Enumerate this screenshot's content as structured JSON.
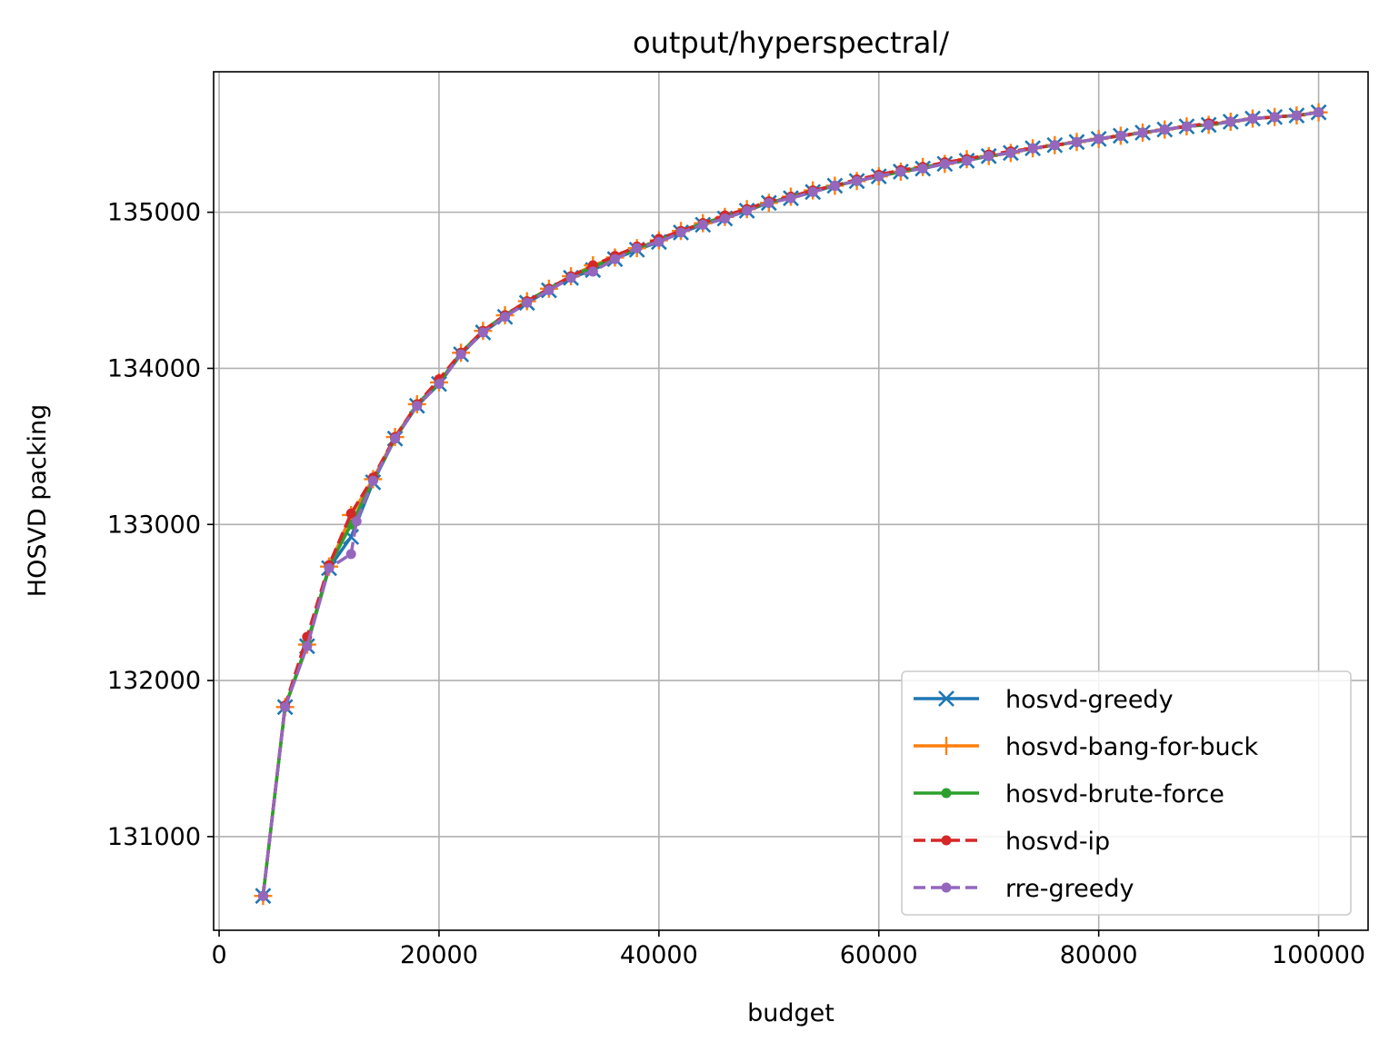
{
  "chart_data": {
    "type": "line",
    "title": "output/hyperspectral/",
    "xlabel": "budget",
    "ylabel": "HOSVD packing",
    "xlim": [
      -500,
      104500
    ],
    "ylim": [
      130400,
      135900
    ],
    "xticks": [
      0,
      20000,
      40000,
      60000,
      80000,
      100000
    ],
    "yticks": [
      131000,
      132000,
      133000,
      134000,
      135000
    ],
    "grid": true,
    "legend_position": "lower-right",
    "series": [
      {
        "name": "hosvd-greedy",
        "color": "#1f77b4",
        "linestyle": "solid",
        "marker": "x",
        "x": [
          4000,
          6000,
          8000,
          10000,
          12000,
          14000,
          16000,
          18000,
          20000,
          22000,
          24000,
          26000,
          28000,
          30000,
          32000,
          34000,
          36000,
          38000,
          40000,
          42000,
          44000,
          46000,
          48000,
          50000,
          52000,
          54000,
          56000,
          58000,
          60000,
          62000,
          64000,
          66000,
          68000,
          70000,
          72000,
          74000,
          76000,
          78000,
          80000,
          82000,
          84000,
          86000,
          88000,
          90000,
          92000,
          94000,
          96000,
          98000,
          100000
        ],
        "y": [
          130620,
          131830,
          132220,
          132720,
          132920,
          133270,
          133550,
          133760,
          133900,
          134090,
          134230,
          134330,
          134420,
          134500,
          134580,
          134630,
          134700,
          134760,
          134810,
          134870,
          134920,
          134960,
          135010,
          135060,
          135090,
          135130,
          135170,
          135200,
          135230,
          135260,
          135280,
          135310,
          135330,
          135360,
          135380,
          135410,
          135430,
          135450,
          135470,
          135490,
          135510,
          135530,
          135550,
          135560,
          135580,
          135600,
          135610,
          135620,
          135640
        ]
      },
      {
        "name": "hosvd-bang-for-buck",
        "color": "#ff7f0e",
        "linestyle": "solid",
        "marker": "+",
        "x": [
          4000,
          6000,
          8000,
          10000,
          12000,
          14000,
          16000,
          18000,
          20000,
          22000,
          24000,
          26000,
          28000,
          30000,
          32000,
          34000,
          36000,
          38000,
          40000,
          42000,
          44000,
          46000,
          48000,
          50000,
          52000,
          54000,
          56000,
          58000,
          60000,
          62000,
          64000,
          66000,
          68000,
          70000,
          72000,
          74000,
          76000,
          78000,
          80000,
          82000,
          84000,
          86000,
          88000,
          90000,
          92000,
          94000,
          96000,
          98000,
          100000
        ],
        "y": [
          130620,
          131830,
          132230,
          132730,
          133060,
          133290,
          133560,
          133770,
          133910,
          134100,
          134240,
          134340,
          134430,
          134510,
          134590,
          134660,
          134710,
          134770,
          134820,
          134880,
          134930,
          134970,
          135020,
          135060,
          135100,
          135140,
          135170,
          135200,
          135230,
          135260,
          135290,
          135310,
          135340,
          135360,
          135380,
          135410,
          135430,
          135450,
          135470,
          135490,
          135510,
          135530,
          135550,
          135560,
          135580,
          135600,
          135610,
          135620,
          135640
        ]
      },
      {
        "name": "hosvd-brute-force",
        "color": "#2ca02c",
        "linestyle": "solid",
        "marker": ".",
        "x": [
          4000,
          6000,
          8000,
          10000,
          12000,
          14000,
          16000,
          18000,
          20000,
          22000,
          24000,
          26000,
          28000,
          30000,
          32000,
          34000,
          36000,
          38000,
          40000,
          42000,
          44000,
          46000,
          48000,
          50000,
          52000,
          54000,
          56000,
          58000,
          60000,
          62000,
          64000,
          66000,
          68000,
          70000,
          72000,
          74000,
          76000,
          78000,
          80000,
          82000,
          84000,
          86000,
          88000,
          90000,
          92000,
          94000,
          96000,
          98000,
          100000
        ],
        "y": [
          130620,
          131830,
          132240,
          132730,
          133000,
          133280,
          133550,
          133770,
          133910,
          134100,
          134240,
          134340,
          134430,
          134510,
          134590,
          134650,
          134710,
          134770,
          134820,
          134880,
          134930,
          134970,
          135020,
          135060,
          135100,
          135140,
          135170,
          135200,
          135230,
          135260,
          135290,
          135310,
          135340,
          135360,
          135380,
          135410,
          135430,
          135450,
          135470,
          135490,
          135510,
          135530,
          135550,
          135560,
          135580,
          135600,
          135610,
          135620,
          135640
        ]
      },
      {
        "name": "hosvd-ip",
        "color": "#d62728",
        "linestyle": "dashed",
        "marker": ".",
        "x": [
          4000,
          6000,
          8000,
          10000,
          12000,
          14000,
          16000,
          18000,
          20000,
          22000,
          24000,
          26000,
          28000,
          30000,
          32000,
          34000,
          36000,
          38000,
          40000,
          42000,
          44000,
          46000,
          48000,
          50000,
          52000,
          54000,
          56000,
          58000,
          60000,
          62000,
          64000,
          66000,
          68000,
          70000,
          72000,
          74000,
          76000,
          78000,
          80000,
          82000,
          84000,
          86000,
          88000,
          90000,
          92000,
          94000,
          96000,
          98000,
          100000
        ],
        "y": [
          130620,
          131840,
          132280,
          132740,
          133070,
          133300,
          133560,
          133770,
          133930,
          134100,
          134240,
          134340,
          134430,
          134510,
          134590,
          134660,
          134720,
          134780,
          134830,
          134880,
          134930,
          134980,
          135020,
          135070,
          135100,
          135140,
          135170,
          135210,
          135240,
          135270,
          135290,
          135320,
          135340,
          135370,
          135390,
          135410,
          135430,
          135450,
          135470,
          135490,
          135510,
          135530,
          135550,
          135570,
          135580,
          135600,
          135610,
          135620,
          135640
        ]
      },
      {
        "name": "rre-greedy",
        "color": "#9467bd",
        "linestyle": "dashed",
        "marker": ".",
        "x": [
          4000,
          6000,
          8000,
          10000,
          12000,
          12500,
          14000,
          16000,
          18000,
          20000,
          22000,
          24000,
          26000,
          28000,
          30000,
          32000,
          34000,
          36000,
          38000,
          40000,
          42000,
          44000,
          46000,
          48000,
          50000,
          52000,
          54000,
          56000,
          58000,
          60000,
          62000,
          64000,
          66000,
          68000,
          70000,
          72000,
          74000,
          76000,
          78000,
          80000,
          82000,
          84000,
          86000,
          88000,
          90000,
          92000,
          94000,
          96000,
          98000,
          100000
        ],
        "y": [
          130620,
          131830,
          132220,
          132720,
          132810,
          133020,
          133280,
          133550,
          133760,
          133900,
          134090,
          134230,
          134330,
          134420,
          134500,
          134580,
          134620,
          134700,
          134770,
          134810,
          134870,
          134920,
          134960,
          135010,
          135060,
          135090,
          135130,
          135170,
          135200,
          135230,
          135260,
          135280,
          135310,
          135330,
          135360,
          135380,
          135410,
          135430,
          135450,
          135470,
          135490,
          135510,
          135530,
          135550,
          135560,
          135580,
          135600,
          135610,
          135620,
          135640
        ]
      }
    ]
  }
}
